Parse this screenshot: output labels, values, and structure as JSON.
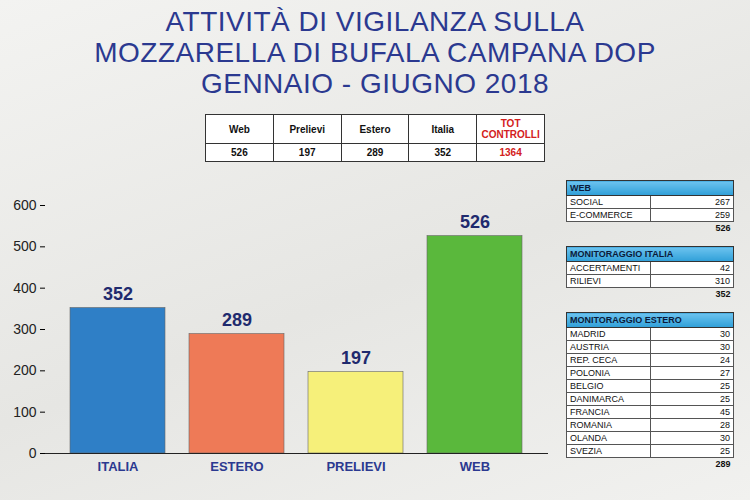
{
  "chart_data": {
    "type": "bar",
    "title": "ATTIVITÀ DI VIGILANZA SULLA MOZZARELLA DI BUFALA CAMPANA DOP",
    "subtitle": "GENNAIO - GIUGNO 2018",
    "categories": [
      "ITALIA",
      "ESTERO",
      "PRELIEVI",
      "WEB"
    ],
    "values": [
      352,
      289,
      197,
      526
    ],
    "colors": [
      "#2f7fc6",
      "#ee7a57",
      "#f6f07a",
      "#5ab83c"
    ],
    "ylim": [
      0,
      600
    ],
    "yticks": [
      0,
      100,
      200,
      300,
      400,
      500,
      600
    ],
    "grid": false,
    "data_labels": true
  },
  "summary_table": {
    "columns": [
      "Web",
      "Prelievi",
      "Estero",
      "Italia",
      "TOT CONTROLLI"
    ],
    "values": [
      526,
      197,
      289,
      352,
      1364
    ]
  },
  "side_tables": [
    {
      "title": "WEB",
      "rows": [
        [
          "SOCIAL",
          267
        ],
        [
          "E-COMMERCE",
          259
        ]
      ],
      "total": 526
    },
    {
      "title": "MONITORAGGIO  ITALIA",
      "rows": [
        [
          "ACCERTAMENTI",
          42
        ],
        [
          "RILIEVI",
          310
        ]
      ],
      "total": 352
    },
    {
      "title": "MONITORAGGIO  ESTERO",
      "rows": [
        [
          "MADRID",
          30
        ],
        [
          "AUSTRIA",
          30
        ],
        [
          "REP. CECA",
          24
        ],
        [
          "POLONIA",
          27
        ],
        [
          "BELGIO",
          25
        ],
        [
          "DANIMARCA",
          25
        ],
        [
          "FRANCIA",
          45
        ],
        [
          "ROMANIA",
          28
        ],
        [
          "OLANDA",
          30
        ],
        [
          "SVEZIA",
          25
        ]
      ],
      "total": 289
    }
  ]
}
